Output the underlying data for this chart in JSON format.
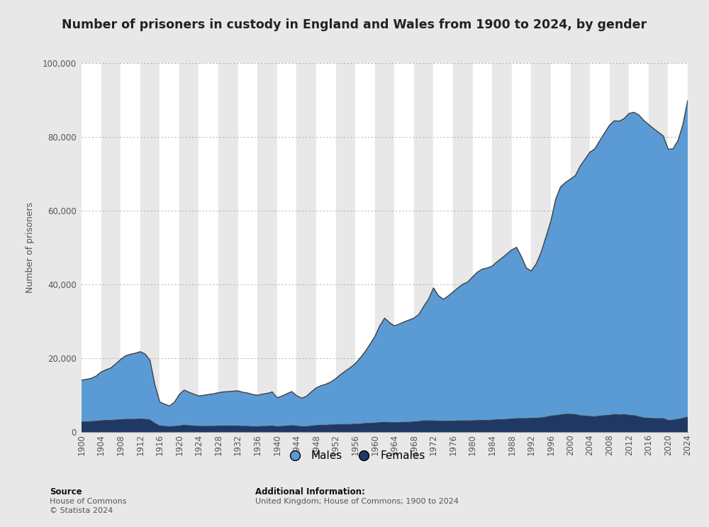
{
  "title": "Number of prisoners in custody in England and Wales from 1900 to 2024, by gender",
  "ylabel": "Number of prisoners",
  "source_line1": "Source",
  "source_line2": "House of Commons",
  "source_line3": "© Statista 2024",
  "additional_line1": "Additional Information:",
  "additional_line2": "United Kingdom; House of Commons; 1900 to 2024",
  "background_color": "#e8e8e8",
  "plot_bg_color": "#ffffff",
  "males_color": "#5b9bd5",
  "females_color": "#1f3864",
  "line_color": "#404040",
  "stripe_color": "#e0e0e0",
  "years": [
    1900,
    1901,
    1902,
    1903,
    1904,
    1905,
    1906,
    1907,
    1908,
    1909,
    1910,
    1911,
    1912,
    1913,
    1914,
    1915,
    1916,
    1917,
    1918,
    1919,
    1920,
    1921,
    1922,
    1923,
    1924,
    1925,
    1926,
    1927,
    1928,
    1929,
    1930,
    1931,
    1932,
    1933,
    1934,
    1935,
    1936,
    1937,
    1938,
    1939,
    1940,
    1941,
    1942,
    1943,
    1944,
    1945,
    1946,
    1947,
    1948,
    1949,
    1950,
    1951,
    1952,
    1953,
    1954,
    1955,
    1956,
    1957,
    1958,
    1959,
    1960,
    1961,
    1962,
    1963,
    1964,
    1965,
    1966,
    1967,
    1968,
    1969,
    1970,
    1971,
    1972,
    1973,
    1974,
    1975,
    1976,
    1977,
    1978,
    1979,
    1980,
    1981,
    1982,
    1983,
    1984,
    1985,
    1986,
    1987,
    1988,
    1989,
    1990,
    1991,
    1992,
    1993,
    1994,
    1995,
    1996,
    1997,
    1998,
    1999,
    2000,
    2001,
    2002,
    2003,
    2004,
    2005,
    2006,
    2007,
    2008,
    2009,
    2010,
    2011,
    2012,
    2013,
    2014,
    2015,
    2016,
    2017,
    2018,
    2019,
    2020,
    2021,
    2022,
    2023,
    2024
  ],
  "males": [
    11300,
    11500,
    11700,
    12200,
    13200,
    13700,
    14200,
    15200,
    16300,
    17200,
    17600,
    17900,
    18200,
    17700,
    16200,
    10500,
    6500,
    6000,
    5600,
    6500,
    8500,
    9500,
    9000,
    8600,
    8200,
    8400,
    8600,
    8800,
    9000,
    9200,
    9300,
    9400,
    9500,
    9200,
    9000,
    8700,
    8500,
    8700,
    8900,
    9200,
    7800,
    8200,
    8700,
    9200,
    8200,
    7700,
    8200,
    9200,
    10200,
    10700,
    11100,
    11600,
    12500,
    13500,
    14500,
    15400,
    16400,
    17900,
    19400,
    21400,
    23400,
    26200,
    28200,
    27100,
    26200,
    26700,
    27200,
    27700,
    28100,
    29000,
    31000,
    33000,
    36000,
    34000,
    33000,
    33900,
    35000,
    36000,
    37000,
    37600,
    39000,
    40200,
    41000,
    41300,
    41700,
    42800,
    43800,
    44800,
    45800,
    46400,
    43800,
    40800,
    39900,
    41800,
    44800,
    48800,
    52800,
    58700,
    61800,
    62800,
    63700,
    64700,
    67600,
    69600,
    71600,
    72600,
    74600,
    76600,
    78600,
    79600,
    79600,
    80200,
    81800,
    82200,
    81800,
    80600,
    79600,
    78600,
    77600,
    76600,
    73500,
    73500,
    75500,
    79500,
    85800
  ],
  "females": [
    2800,
    2800,
    2900,
    3000,
    3100,
    3200,
    3200,
    3300,
    3400,
    3500,
    3500,
    3500,
    3600,
    3500,
    3300,
    2400,
    1700,
    1600,
    1500,
    1600,
    1700,
    1900,
    1800,
    1700,
    1600,
    1600,
    1600,
    1600,
    1700,
    1700,
    1700,
    1700,
    1700,
    1600,
    1600,
    1500,
    1500,
    1600,
    1600,
    1700,
    1500,
    1600,
    1700,
    1800,
    1700,
    1500,
    1500,
    1700,
    1800,
    1900,
    1900,
    2000,
    2000,
    2100,
    2100,
    2100,
    2200,
    2200,
    2400,
    2400,
    2500,
    2600,
    2700,
    2600,
    2600,
    2600,
    2700,
    2700,
    2800,
    2900,
    3100,
    3100,
    3100,
    3000,
    3000,
    3000,
    3000,
    3100,
    3100,
    3100,
    3100,
    3200,
    3200,
    3200,
    3300,
    3400,
    3400,
    3500,
    3600,
    3700,
    3700,
    3700,
    3800,
    3800,
    3900,
    4100,
    4400,
    4500,
    4700,
    4900,
    4900,
    4800,
    4500,
    4400,
    4300,
    4200,
    4400,
    4500,
    4600,
    4800,
    4700,
    4800,
    4600,
    4500,
    4200,
    3900,
    3800,
    3700,
    3700,
    3700,
    3200,
    3300,
    3500,
    3800,
    4100
  ],
  "ylim": [
    0,
    100000
  ],
  "yticks": [
    0,
    20000,
    40000,
    60000,
    80000,
    100000
  ],
  "legend_males": "Males",
  "legend_females": "Females"
}
